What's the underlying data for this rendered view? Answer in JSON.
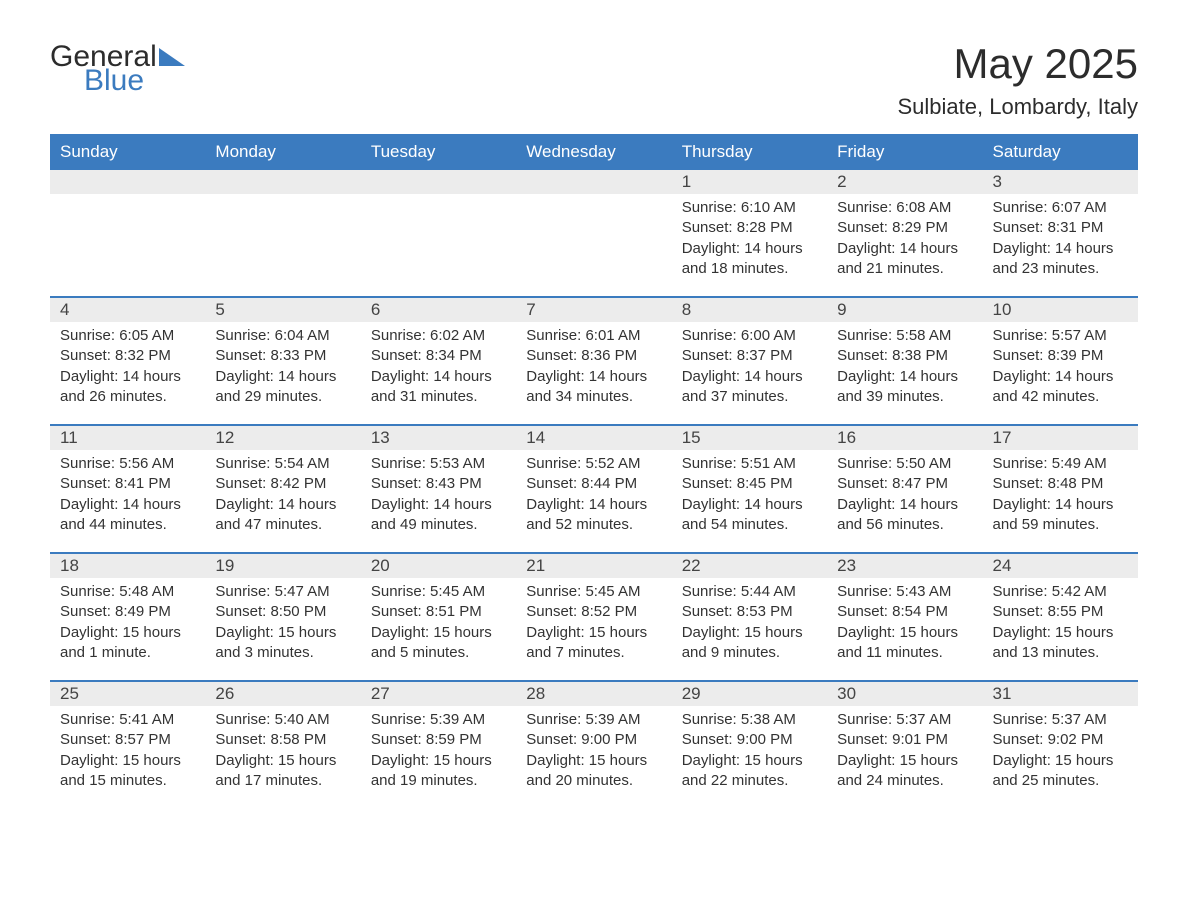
{
  "logo": {
    "word1": "General",
    "word2": "Blue"
  },
  "title": "May 2025",
  "location": "Sulbiate, Lombardy, Italy",
  "colors": {
    "brand_blue": "#3b7bbf",
    "header_bg": "#3b7bbf",
    "daynum_bg": "#ececec",
    "text": "#333333",
    "background": "#ffffff"
  },
  "daysOfWeek": [
    "Sunday",
    "Monday",
    "Tuesday",
    "Wednesday",
    "Thursday",
    "Friday",
    "Saturday"
  ],
  "weeks": [
    [
      {
        "n": "",
        "sunrise": "",
        "sunset": "",
        "daylight": ""
      },
      {
        "n": "",
        "sunrise": "",
        "sunset": "",
        "daylight": ""
      },
      {
        "n": "",
        "sunrise": "",
        "sunset": "",
        "daylight": ""
      },
      {
        "n": "",
        "sunrise": "",
        "sunset": "",
        "daylight": ""
      },
      {
        "n": "1",
        "sunrise": "Sunrise: 6:10 AM",
        "sunset": "Sunset: 8:28 PM",
        "daylight": "Daylight: 14 hours and 18 minutes."
      },
      {
        "n": "2",
        "sunrise": "Sunrise: 6:08 AM",
        "sunset": "Sunset: 8:29 PM",
        "daylight": "Daylight: 14 hours and 21 minutes."
      },
      {
        "n": "3",
        "sunrise": "Sunrise: 6:07 AM",
        "sunset": "Sunset: 8:31 PM",
        "daylight": "Daylight: 14 hours and 23 minutes."
      }
    ],
    [
      {
        "n": "4",
        "sunrise": "Sunrise: 6:05 AM",
        "sunset": "Sunset: 8:32 PM",
        "daylight": "Daylight: 14 hours and 26 minutes."
      },
      {
        "n": "5",
        "sunrise": "Sunrise: 6:04 AM",
        "sunset": "Sunset: 8:33 PM",
        "daylight": "Daylight: 14 hours and 29 minutes."
      },
      {
        "n": "6",
        "sunrise": "Sunrise: 6:02 AM",
        "sunset": "Sunset: 8:34 PM",
        "daylight": "Daylight: 14 hours and 31 minutes."
      },
      {
        "n": "7",
        "sunrise": "Sunrise: 6:01 AM",
        "sunset": "Sunset: 8:36 PM",
        "daylight": "Daylight: 14 hours and 34 minutes."
      },
      {
        "n": "8",
        "sunrise": "Sunrise: 6:00 AM",
        "sunset": "Sunset: 8:37 PM",
        "daylight": "Daylight: 14 hours and 37 minutes."
      },
      {
        "n": "9",
        "sunrise": "Sunrise: 5:58 AM",
        "sunset": "Sunset: 8:38 PM",
        "daylight": "Daylight: 14 hours and 39 minutes."
      },
      {
        "n": "10",
        "sunrise": "Sunrise: 5:57 AM",
        "sunset": "Sunset: 8:39 PM",
        "daylight": "Daylight: 14 hours and 42 minutes."
      }
    ],
    [
      {
        "n": "11",
        "sunrise": "Sunrise: 5:56 AM",
        "sunset": "Sunset: 8:41 PM",
        "daylight": "Daylight: 14 hours and 44 minutes."
      },
      {
        "n": "12",
        "sunrise": "Sunrise: 5:54 AM",
        "sunset": "Sunset: 8:42 PM",
        "daylight": "Daylight: 14 hours and 47 minutes."
      },
      {
        "n": "13",
        "sunrise": "Sunrise: 5:53 AM",
        "sunset": "Sunset: 8:43 PM",
        "daylight": "Daylight: 14 hours and 49 minutes."
      },
      {
        "n": "14",
        "sunrise": "Sunrise: 5:52 AM",
        "sunset": "Sunset: 8:44 PM",
        "daylight": "Daylight: 14 hours and 52 minutes."
      },
      {
        "n": "15",
        "sunrise": "Sunrise: 5:51 AM",
        "sunset": "Sunset: 8:45 PM",
        "daylight": "Daylight: 14 hours and 54 minutes."
      },
      {
        "n": "16",
        "sunrise": "Sunrise: 5:50 AM",
        "sunset": "Sunset: 8:47 PM",
        "daylight": "Daylight: 14 hours and 56 minutes."
      },
      {
        "n": "17",
        "sunrise": "Sunrise: 5:49 AM",
        "sunset": "Sunset: 8:48 PM",
        "daylight": "Daylight: 14 hours and 59 minutes."
      }
    ],
    [
      {
        "n": "18",
        "sunrise": "Sunrise: 5:48 AM",
        "sunset": "Sunset: 8:49 PM",
        "daylight": "Daylight: 15 hours and 1 minute."
      },
      {
        "n": "19",
        "sunrise": "Sunrise: 5:47 AM",
        "sunset": "Sunset: 8:50 PM",
        "daylight": "Daylight: 15 hours and 3 minutes."
      },
      {
        "n": "20",
        "sunrise": "Sunrise: 5:45 AM",
        "sunset": "Sunset: 8:51 PM",
        "daylight": "Daylight: 15 hours and 5 minutes."
      },
      {
        "n": "21",
        "sunrise": "Sunrise: 5:45 AM",
        "sunset": "Sunset: 8:52 PM",
        "daylight": "Daylight: 15 hours and 7 minutes."
      },
      {
        "n": "22",
        "sunrise": "Sunrise: 5:44 AM",
        "sunset": "Sunset: 8:53 PM",
        "daylight": "Daylight: 15 hours and 9 minutes."
      },
      {
        "n": "23",
        "sunrise": "Sunrise: 5:43 AM",
        "sunset": "Sunset: 8:54 PM",
        "daylight": "Daylight: 15 hours and 11 minutes."
      },
      {
        "n": "24",
        "sunrise": "Sunrise: 5:42 AM",
        "sunset": "Sunset: 8:55 PM",
        "daylight": "Daylight: 15 hours and 13 minutes."
      }
    ],
    [
      {
        "n": "25",
        "sunrise": "Sunrise: 5:41 AM",
        "sunset": "Sunset: 8:57 PM",
        "daylight": "Daylight: 15 hours and 15 minutes."
      },
      {
        "n": "26",
        "sunrise": "Sunrise: 5:40 AM",
        "sunset": "Sunset: 8:58 PM",
        "daylight": "Daylight: 15 hours and 17 minutes."
      },
      {
        "n": "27",
        "sunrise": "Sunrise: 5:39 AM",
        "sunset": "Sunset: 8:59 PM",
        "daylight": "Daylight: 15 hours and 19 minutes."
      },
      {
        "n": "28",
        "sunrise": "Sunrise: 5:39 AM",
        "sunset": "Sunset: 9:00 PM",
        "daylight": "Daylight: 15 hours and 20 minutes."
      },
      {
        "n": "29",
        "sunrise": "Sunrise: 5:38 AM",
        "sunset": "Sunset: 9:00 PM",
        "daylight": "Daylight: 15 hours and 22 minutes."
      },
      {
        "n": "30",
        "sunrise": "Sunrise: 5:37 AM",
        "sunset": "Sunset: 9:01 PM",
        "daylight": "Daylight: 15 hours and 24 minutes."
      },
      {
        "n": "31",
        "sunrise": "Sunrise: 5:37 AM",
        "sunset": "Sunset: 9:02 PM",
        "daylight": "Daylight: 15 hours and 25 minutes."
      }
    ]
  ]
}
